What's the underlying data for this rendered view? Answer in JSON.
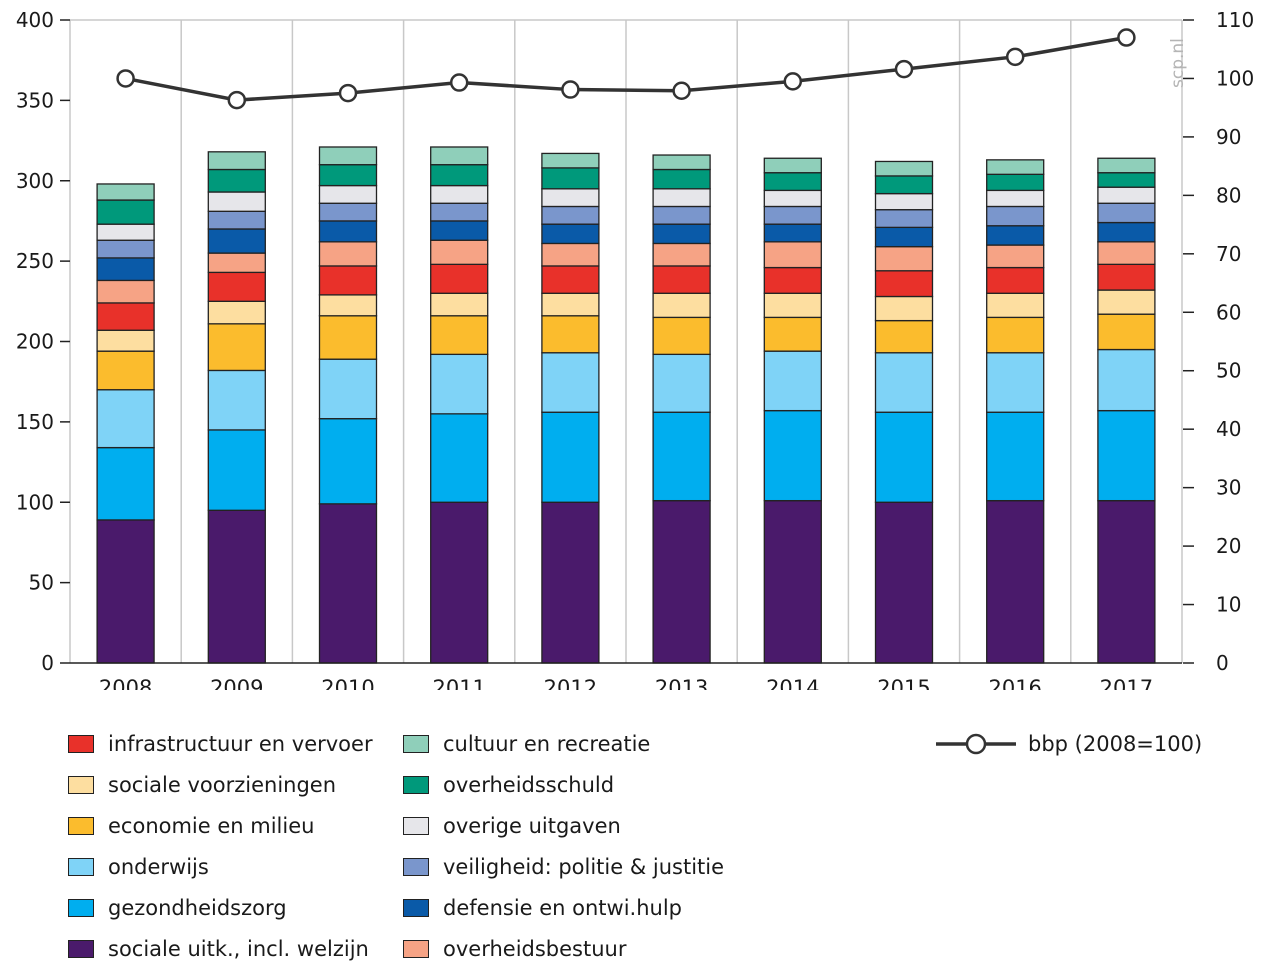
{
  "chart_data": {
    "type": "bar",
    "stacked": true,
    "categories": [
      "2008",
      "2009",
      "2010",
      "2011",
      "2012",
      "2013",
      "2014",
      "2015",
      "2016",
      "2017"
    ],
    "series": [
      {
        "name": "sociale uitk., incl. welzijn",
        "color": "#4a1a6b",
        "values": [
          89,
          95,
          99,
          100,
          100,
          101,
          101,
          100,
          101,
          101
        ]
      },
      {
        "name": "gezondheidszorg",
        "color": "#00aeef",
        "values": [
          45,
          50,
          53,
          55,
          56,
          55,
          56,
          56,
          55,
          56
        ]
      },
      {
        "name": "onderwijs",
        "color": "#7fd3f7",
        "values": [
          36,
          37,
          37,
          37,
          37,
          36,
          37,
          37,
          37,
          38
        ]
      },
      {
        "name": "economie en milieu",
        "color": "#fbbc2d",
        "values": [
          24,
          29,
          27,
          24,
          23,
          23,
          21,
          20,
          22,
          22
        ]
      },
      {
        "name": "sociale voorzieningen",
        "color": "#fddea0",
        "values": [
          13,
          14,
          13,
          14,
          14,
          15,
          15,
          15,
          15,
          15
        ]
      },
      {
        "name": "infrastructuur en vervoer",
        "color": "#e8312a",
        "values": [
          17,
          18,
          18,
          18,
          17,
          17,
          16,
          16,
          16,
          16
        ]
      },
      {
        "name": "overheidsbestuur",
        "color": "#f6a385",
        "values": [
          14,
          12,
          15,
          15,
          14,
          14,
          16,
          15,
          14,
          14
        ]
      },
      {
        "name": "defensie en ontwi.hulp",
        "color": "#0a5aa8",
        "values": [
          14,
          15,
          13,
          12,
          12,
          12,
          11,
          12,
          12,
          12
        ]
      },
      {
        "name": "veiligheid: politie & justitie",
        "color": "#7a96cc",
        "values": [
          11,
          11,
          11,
          11,
          11,
          11,
          11,
          11,
          12,
          12
        ]
      },
      {
        "name": "overige uitgaven",
        "color": "#e6e6ea",
        "values": [
          10,
          12,
          11,
          11,
          11,
          11,
          10,
          10,
          10,
          10
        ]
      },
      {
        "name": "overheidsschuld",
        "color": "#00997b",
        "values": [
          15,
          14,
          13,
          13,
          13,
          12,
          11,
          11,
          10,
          9
        ]
      },
      {
        "name": "cultuur en recreatie",
        "color": "#8fcfba",
        "values": [
          10,
          11,
          11,
          11,
          9,
          9,
          9,
          9,
          9,
          9
        ]
      }
    ],
    "line_series": {
      "name": "bbp (2008=100)",
      "axis": "right",
      "values": [
        100,
        96.3,
        97.5,
        99.3,
        98.1,
        97.9,
        99.5,
        101.6,
        103.7,
        107
      ]
    },
    "y_left": {
      "ylim": [
        0,
        400
      ],
      "ticks": [
        0,
        50,
        100,
        150,
        200,
        250,
        300,
        350,
        400
      ]
    },
    "y_right": {
      "ylim": [
        0,
        110
      ],
      "ticks": [
        0,
        10,
        20,
        30,
        40,
        50,
        60,
        70,
        80,
        90,
        100,
        110
      ]
    },
    "grid": "vertical",
    "legend": "bottom",
    "watermark": "scp.nl"
  },
  "legend": {
    "col1": [
      {
        "label": "infrastructuur en vervoer",
        "color": "#e8312a",
        "icon": "swatch-icon"
      },
      {
        "label": "sociale voorzieningen",
        "color": "#fddea0",
        "icon": "swatch-icon"
      },
      {
        "label": "economie en milieu",
        "color": "#fbbc2d",
        "icon": "swatch-icon"
      },
      {
        "label": "onderwijs",
        "color": "#7fd3f7",
        "icon": "swatch-icon"
      },
      {
        "label": "gezondheidszorg",
        "color": "#00aeef",
        "icon": "swatch-icon"
      },
      {
        "label": "sociale uitk., incl. welzijn",
        "color": "#4a1a6b",
        "icon": "swatch-icon"
      }
    ],
    "col2": [
      {
        "label": "cultuur en recreatie",
        "color": "#8fcfba",
        "icon": "swatch-icon"
      },
      {
        "label": "overheidsschuld",
        "color": "#00997b",
        "icon": "swatch-icon"
      },
      {
        "label": "overige uitgaven",
        "color": "#e6e6ea",
        "icon": "swatch-icon"
      },
      {
        "label": "veiligheid: politie & justitie",
        "color": "#7a96cc",
        "icon": "swatch-icon"
      },
      {
        "label": "defensie en ontwi.hulp",
        "color": "#0a5aa8",
        "icon": "swatch-icon"
      },
      {
        "label": "overheidsbestuur",
        "color": "#f6a385",
        "icon": "swatch-icon"
      }
    ],
    "line_label": "bbp (2008=100)"
  }
}
